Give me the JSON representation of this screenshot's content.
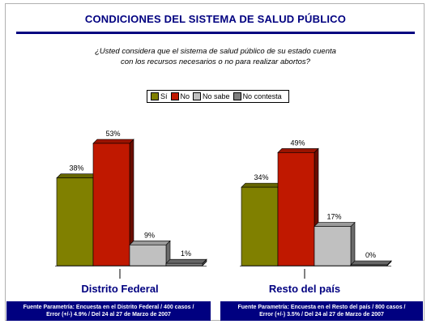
{
  "title": "CONDICIONES DEL SISTEMA DE SALUD PÚBLICO",
  "question_line1": "¿Usted considera que el sistema de salud público de su estado cuenta",
  "question_line2": "con los recursos necesarios o no para realizar abortos?",
  "legend": [
    {
      "label": "Sí",
      "color": "#808000"
    },
    {
      "label": "No",
      "color": "#c01800"
    },
    {
      "label": "No sabe",
      "color": "#c0c0c0"
    },
    {
      "label": "No contesta",
      "color": "#808080"
    }
  ],
  "footer_left_line1": "Fuente Parametría: Encuesta en el Distrito Federal / 400 casos /",
  "footer_left_line2": "Error (+/-) 4.9% / Del 24 al 27 de Marzo de 2007",
  "footer_right_line1": "Fuente Parametría: Encuesta en el Resto del país / 800 casos /",
  "footer_right_line2": "Error (+/-) 3.5% / Del 24 al 27 de Marzo de 2007",
  "chart_data": {
    "type": "bar",
    "categories": [
      "Distrito Federal",
      "Resto del país"
    ],
    "series": [
      {
        "name": "Sí",
        "values": [
          38,
          34
        ]
      },
      {
        "name": "No",
        "values": [
          53,
          49
        ]
      },
      {
        "name": "No sabe",
        "values": [
          9,
          17
        ]
      },
      {
        "name": "No contesta",
        "values": [
          1,
          0
        ]
      }
    ],
    "value_labels": [
      [
        "38%",
        "53%",
        "9%",
        "1%"
      ],
      [
        "34%",
        "49%",
        "17%",
        "0%"
      ]
    ],
    "ylim": [
      0,
      60
    ],
    "grid": false,
    "legend_position": "top-center"
  }
}
